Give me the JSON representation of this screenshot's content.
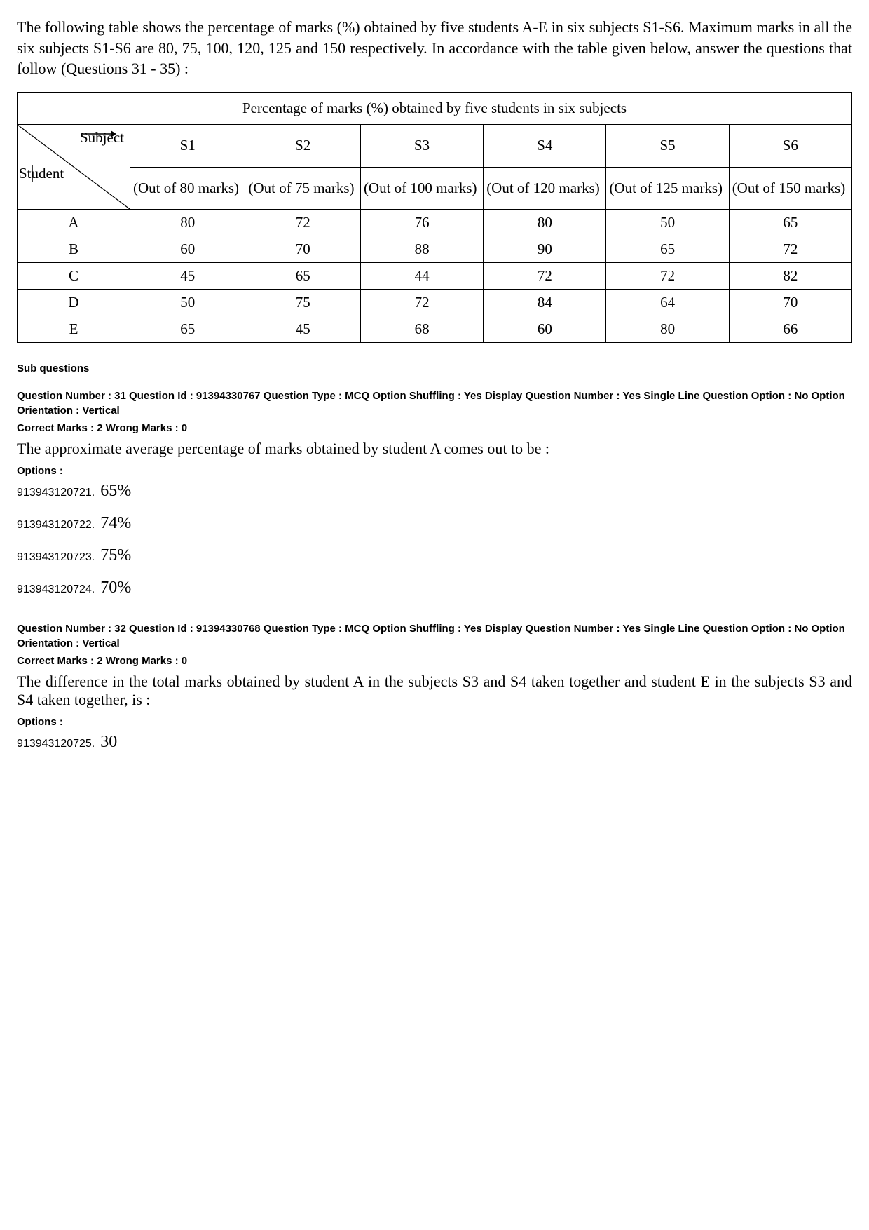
{
  "intro": "The following table shows the percentage of marks (%) obtained by five students A-E in six subjects S1-S6.  Maximum marks in all the six subjects S1-S6 are 80, 75, 100, 120, 125 and 150 respectively.  In accordance with the table given below, answer the questions that follow (Questions 31 - 35) :",
  "table": {
    "caption": "Percentage of marks (%) obtained by five students in six subjects",
    "diag": {
      "subject": "Subject",
      "student": "Student"
    },
    "columns": [
      {
        "label": "S1",
        "sub": "(Out of 80 marks)"
      },
      {
        "label": "S2",
        "sub": "(Out of 75 marks)"
      },
      {
        "label": "S3",
        "sub": "(Out of 100 marks)"
      },
      {
        "label": "S4",
        "sub": "(Out of 120 marks)"
      },
      {
        "label": "S5",
        "sub": "(Out of 125 marks)"
      },
      {
        "label": "S6",
        "sub": "(Out of 150 marks)"
      }
    ],
    "rows": [
      {
        "student": "A",
        "values": [
          "80",
          "72",
          "76",
          "80",
          "50",
          "65"
        ]
      },
      {
        "student": "B",
        "values": [
          "60",
          "70",
          "88",
          "90",
          "65",
          "72"
        ]
      },
      {
        "student": "C",
        "values": [
          "45",
          "65",
          "44",
          "72",
          "72",
          "82"
        ]
      },
      {
        "student": "D",
        "values": [
          "50",
          "75",
          "72",
          "84",
          "64",
          "70"
        ]
      },
      {
        "student": "E",
        "values": [
          "65",
          "45",
          "68",
          "60",
          "80",
          "66"
        ]
      }
    ]
  },
  "sub_questions_header": "Sub questions",
  "options_header": "Options :",
  "q31": {
    "meta1": "Question Number : 31  Question Id : 91394330767  Question Type : MCQ  Option Shuffling : Yes  Display Question Number : Yes Single Line Question Option : No  Option Orientation : Vertical",
    "meta2": "Correct Marks : 2  Wrong Marks : 0",
    "text": "The approximate average percentage of marks obtained by student A comes out to be :",
    "options": [
      {
        "id": "913943120721.",
        "val": "65%"
      },
      {
        "id": "913943120722.",
        "val": "74%"
      },
      {
        "id": "913943120723.",
        "val": "75%"
      },
      {
        "id": "913943120724.",
        "val": "70%"
      }
    ]
  },
  "q32": {
    "meta1": "Question Number : 32  Question Id : 91394330768  Question Type : MCQ  Option Shuffling : Yes  Display Question Number : Yes Single Line Question Option : No  Option Orientation : Vertical",
    "meta2": "Correct Marks : 2  Wrong Marks : 0",
    "text": "The difference in the total marks obtained by student A in the subjects S3 and S4 taken together and student E in the subjects S3 and S4 taken together, is :",
    "options": [
      {
        "id": "913943120725.",
        "val": "30"
      }
    ]
  }
}
